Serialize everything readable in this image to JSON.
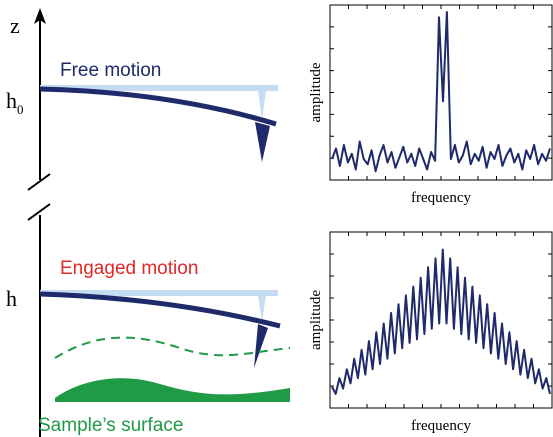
{
  "axis_label": "z",
  "free": {
    "title": "Free motion",
    "height_label": "h",
    "height_subscript": "0"
  },
  "engaged": {
    "title": "Engaged motion",
    "height_label": "h",
    "surface_label": "Sample’s surface"
  },
  "spectra": [
    {
      "ylabel": "amplitude",
      "xlabel": "frequency",
      "ylim": [
        0,
        1
      ],
      "color": "#1f2a6b",
      "values": [
        0.12,
        0.18,
        0.08,
        0.2,
        0.1,
        0.15,
        0.06,
        0.22,
        0.12,
        0.09,
        0.17,
        0.05,
        0.14,
        0.2,
        0.1,
        0.16,
        0.07,
        0.13,
        0.19,
        0.1,
        0.15,
        0.08,
        0.18,
        0.12,
        0.06,
        0.16,
        0.11,
        0.93,
        0.45,
        0.96,
        0.12,
        0.2,
        0.1,
        0.14,
        0.22,
        0.09,
        0.15,
        0.11,
        0.19,
        0.07,
        0.16,
        0.12,
        0.2,
        0.08,
        0.14,
        0.18,
        0.1,
        0.15,
        0.06,
        0.17,
        0.12,
        0.2,
        0.09,
        0.15,
        0.11,
        0.18
      ]
    },
    {
      "ylabel": "amplitude",
      "xlabel": "frequency",
      "ylim": [
        0,
        1
      ],
      "color": "#1f2a6b",
      "values": [
        0.12,
        0.08,
        0.17,
        0.11,
        0.22,
        0.14,
        0.28,
        0.17,
        0.33,
        0.19,
        0.38,
        0.22,
        0.43,
        0.25,
        0.48,
        0.28,
        0.54,
        0.31,
        0.59,
        0.34,
        0.64,
        0.37,
        0.69,
        0.39,
        0.74,
        0.42,
        0.8,
        0.45,
        0.85,
        0.48,
        0.9,
        0.48,
        0.85,
        0.45,
        0.8,
        0.42,
        0.74,
        0.39,
        0.69,
        0.37,
        0.64,
        0.34,
        0.59,
        0.31,
        0.54,
        0.28,
        0.48,
        0.25,
        0.43,
        0.22,
        0.38,
        0.19,
        0.33,
        0.17,
        0.28,
        0.14,
        0.22,
        0.11,
        0.17,
        0.08
      ]
    }
  ]
}
